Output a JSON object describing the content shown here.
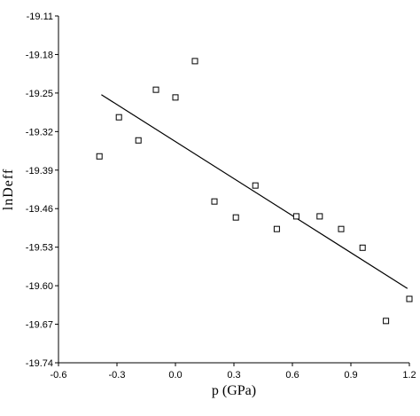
{
  "chart_data": {
    "type": "scatter",
    "title": "",
    "xlabel": "p (GPa)",
    "ylabel": "lnDeff",
    "xlim": [
      -0.6,
      1.2
    ],
    "ylim": [
      -19.74,
      -19.11
    ],
    "x_ticks": [
      -0.6,
      -0.3,
      0.0,
      0.3,
      0.6,
      0.9,
      1.2
    ],
    "x_tick_labels": [
      "-0.6",
      "-0.3",
      "0.0",
      "0.3",
      "0.6",
      "0.9",
      "1.2"
    ],
    "y_ticks": [
      -19.11,
      -19.18,
      -19.25,
      -19.32,
      -19.39,
      -19.46,
      -19.53,
      -19.6,
      -19.67,
      -19.74
    ],
    "y_tick_labels": [
      "-19.11",
      "-19.18",
      "-19.25",
      "-19.32",
      "-19.39",
      "-19.46",
      "-19.53",
      "-19.60",
      "-19.67",
      "-19.74"
    ],
    "grid": false,
    "series": [
      {
        "marker": "open-square",
        "points": [
          {
            "x": -0.39,
            "y": -19.365
          },
          {
            "x": -0.29,
            "y": -19.294
          },
          {
            "x": -0.19,
            "y": -19.336
          },
          {
            "x": -0.1,
            "y": -19.244
          },
          {
            "x": 0.0,
            "y": -19.258
          },
          {
            "x": 0.1,
            "y": -19.192
          },
          {
            "x": 0.2,
            "y": -19.447
          },
          {
            "x": 0.31,
            "y": -19.476
          },
          {
            "x": 0.41,
            "y": -19.418
          },
          {
            "x": 0.52,
            "y": -19.497
          },
          {
            "x": 0.62,
            "y": -19.474
          },
          {
            "x": 0.74,
            "y": -19.474
          },
          {
            "x": 0.85,
            "y": -19.497
          },
          {
            "x": 0.96,
            "y": -19.531
          },
          {
            "x": 1.08,
            "y": -19.664
          },
          {
            "x": 1.2,
            "y": -19.624
          }
        ]
      }
    ],
    "fit_line": {
      "x": [
        -0.38,
        1.19
      ],
      "y": [
        -19.253,
        -19.605
      ]
    },
    "colors": {
      "axis": "#000000",
      "marker_stroke": "#000000",
      "marker_fill": "#ffffff",
      "line": "#000000"
    }
  }
}
